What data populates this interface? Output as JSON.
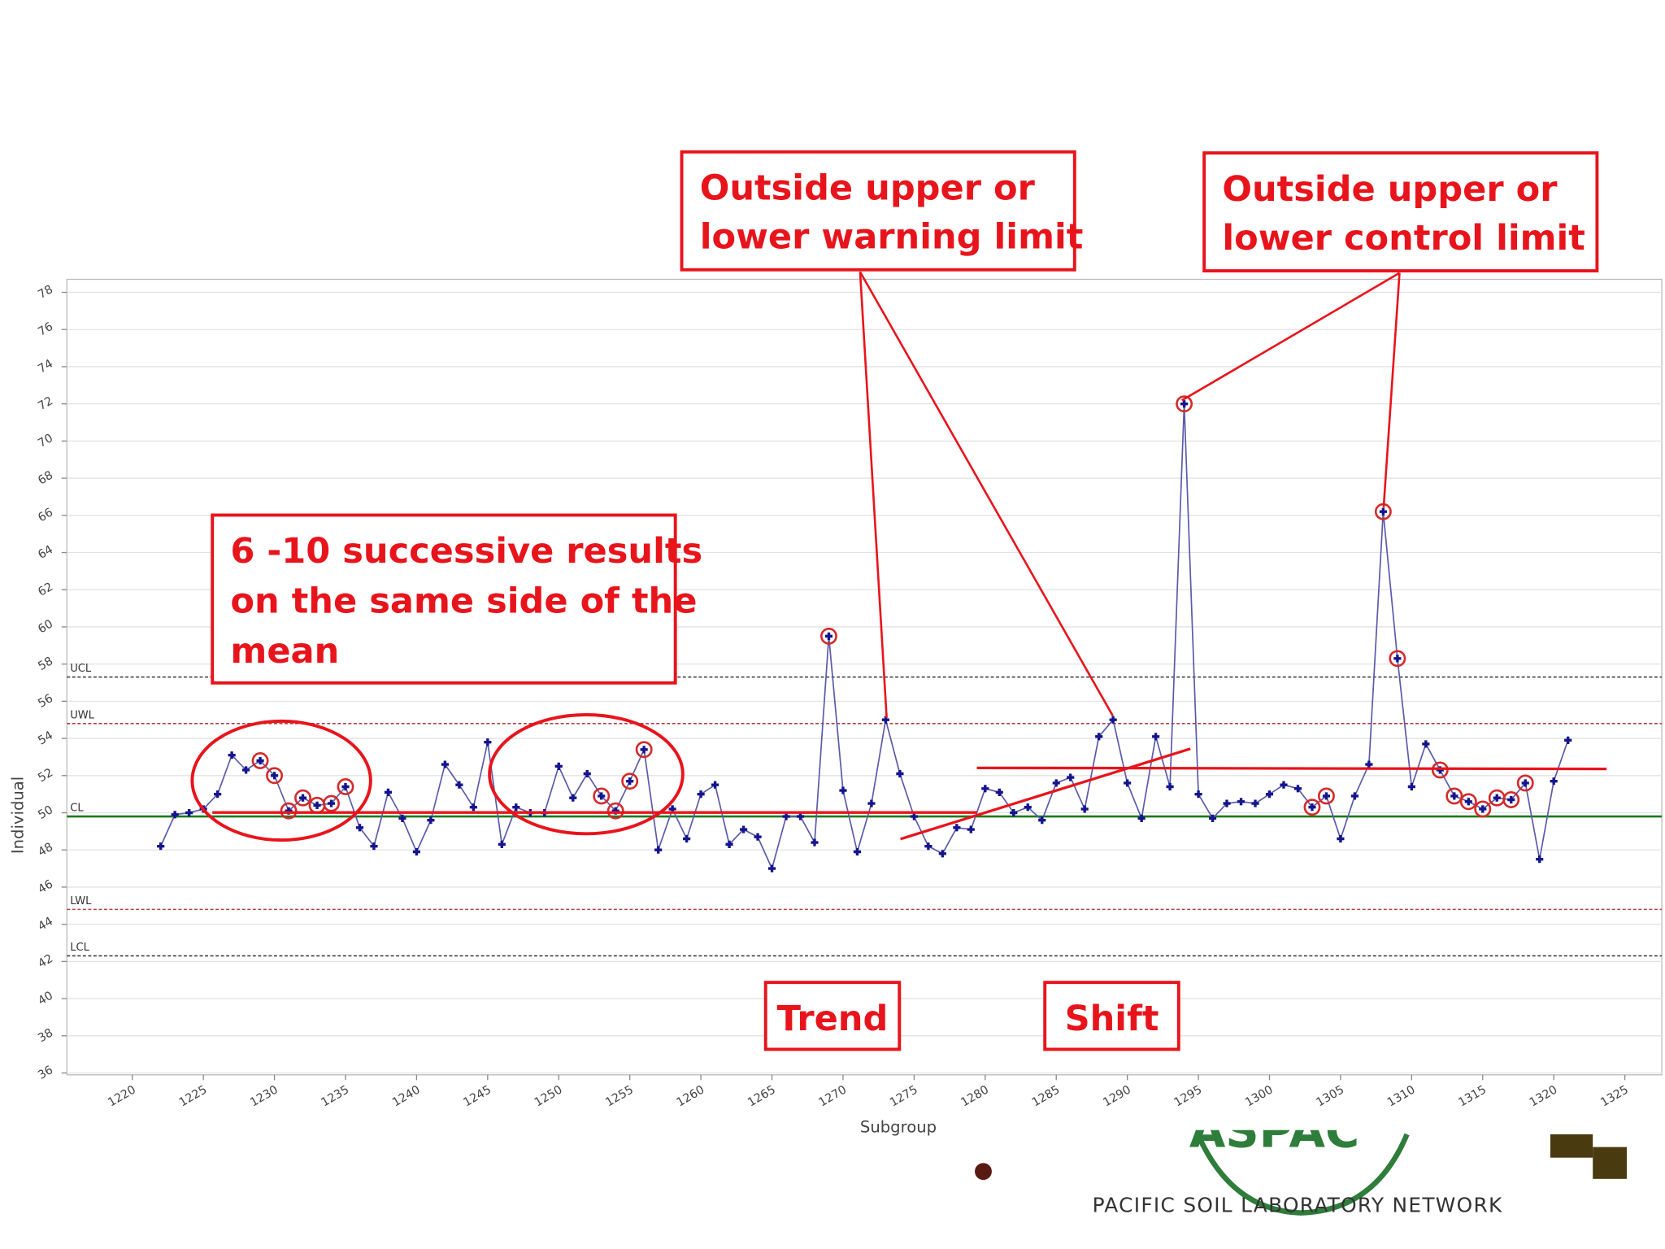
{
  "chart_data": {
    "type": "line",
    "ylabel": "Individual",
    "xlabel": "Subgroup",
    "x": [
      1222,
      1223,
      1224,
      1225,
      1226,
      1227,
      1228,
      1229,
      1230,
      1231,
      1232,
      1233,
      1234,
      1235,
      1236,
      1237,
      1238,
      1239,
      1240,
      1241,
      1242,
      1243,
      1244,
      1245,
      1246,
      1247,
      1248,
      1249,
      1250,
      1251,
      1252,
      1253,
      1254,
      1255,
      1256,
      1257,
      1258,
      1259,
      1260,
      1261,
      1262,
      1263,
      1264,
      1265,
      1266,
      1267,
      1268,
      1269,
      1270,
      1271,
      1272,
      1273,
      1274,
      1275,
      1276,
      1277,
      1278,
      1279,
      1280,
      1281,
      1282,
      1283,
      1284,
      1285,
      1286,
      1287,
      1288,
      1289,
      1290,
      1291,
      1292,
      1293,
      1294,
      1295,
      1296,
      1297,
      1298,
      1299,
      1300,
      1301,
      1302,
      1303,
      1304,
      1305,
      1306,
      1307,
      1308,
      1309,
      1310,
      1311,
      1312,
      1313,
      1314,
      1315,
      1316,
      1317,
      1318,
      1319,
      1320,
      1321
    ],
    "values": [
      48.2,
      49.9,
      50.0,
      50.2,
      51.0,
      53.1,
      52.3,
      52.8,
      52.0,
      50.1,
      50.8,
      50.4,
      50.5,
      51.4,
      49.2,
      48.2,
      51.1,
      49.7,
      47.9,
      49.6,
      52.6,
      51.5,
      50.3,
      53.8,
      48.3,
      50.3,
      50.0,
      50.0,
      52.5,
      50.8,
      52.1,
      50.9,
      50.1,
      51.7,
      53.4,
      48.0,
      50.2,
      48.6,
      51.0,
      51.5,
      48.3,
      49.1,
      48.7,
      47.0,
      49.8,
      49.8,
      48.4,
      59.5,
      51.2,
      47.9,
      50.5,
      55.0,
      52.1,
      49.8,
      48.2,
      47.8,
      49.2,
      49.1,
      51.3,
      51.1,
      50.0,
      50.3,
      49.6,
      51.6,
      51.9,
      50.2,
      54.1,
      55.0,
      51.6,
      49.7,
      54.1,
      51.4,
      72.0,
      51.0,
      49.7,
      50.5,
      50.6,
      50.5,
      51.0,
      51.5,
      51.3,
      50.3,
      50.9,
      48.6,
      50.9,
      52.6,
      66.2,
      58.3,
      51.4,
      53.7,
      52.3,
      50.9,
      50.6,
      50.2,
      50.8,
      50.7,
      51.6,
      47.5,
      51.7,
      53.9
    ],
    "color": "#5b5bab",
    "marker_color": "#14148c",
    "highlighted_x": [
      1229,
      1230,
      1231,
      1232,
      1233,
      1234,
      1235,
      1253,
      1254,
      1255,
      1256,
      1269,
      1294,
      1303,
      1304,
      1308,
      1309,
      1312,
      1313,
      1314,
      1315,
      1316,
      1317,
      1318
    ],
    "highlight_color": "#d42a2a",
    "limits": [
      {
        "name": "UCL",
        "value": 57.3,
        "color": "#333333"
      },
      {
        "name": "UWL",
        "value": 54.8,
        "color": "#b04040"
      },
      {
        "name": "CL",
        "value": 49.8,
        "color": "#1a7a1a"
      },
      {
        "name": "LWL",
        "value": 44.8,
        "color": "#b04040"
      },
      {
        "name": "LCL",
        "value": 42.3,
        "color": "#333333"
      }
    ],
    "xlim": [
      1215.4,
      1327.6
    ],
    "ylim": [
      35.9,
      78.7
    ],
    "xticks": [
      1220,
      1225,
      1230,
      1235,
      1240,
      1245,
      1250,
      1255,
      1260,
      1265,
      1270,
      1275,
      1280,
      1285,
      1290,
      1295,
      1300,
      1305,
      1310,
      1315,
      1320,
      1325
    ],
    "yticks": [
      36,
      38,
      40,
      42,
      44,
      46,
      48,
      50,
      52,
      54,
      56,
      58,
      60,
      62,
      64,
      66,
      68,
      70,
      72,
      74,
      76,
      78
    ],
    "grid": true
  },
  "annotations": {
    "warning": [
      "Outside upper or",
      "lower warning limit"
    ],
    "control": [
      "Outside upper or",
      "lower control limit"
    ],
    "run": [
      "6 -10 successive results",
      "on the same side of the",
      "mean"
    ],
    "trend": "Trend",
    "shift": "Shift"
  },
  "footer": {
    "network": "PACIFIC SOIL LABORATORY NETWORK"
  }
}
